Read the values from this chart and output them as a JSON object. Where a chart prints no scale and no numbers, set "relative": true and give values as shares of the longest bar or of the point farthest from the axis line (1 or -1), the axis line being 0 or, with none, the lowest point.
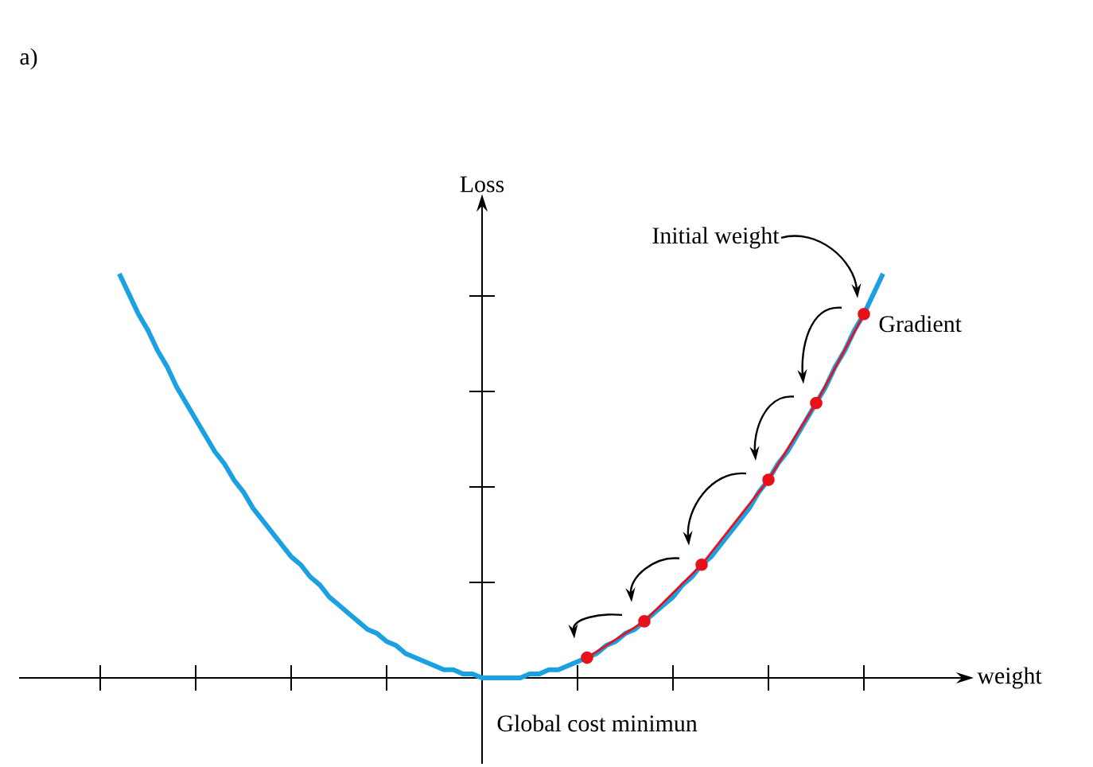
{
  "chart_data": {
    "type": "line",
    "relative": true,
    "xlabel": "weight",
    "ylabel": "Loss",
    "annotations": [
      "a)",
      "Initial weight",
      "Gradient",
      "Global cost minimun"
    ],
    "categories": [
      null,
      null,
      null,
      null,
      null,
      null,
      null,
      null,
      null,
      null,
      null,
      null,
      null,
      null,
      null,
      null,
      null,
      null,
      null,
      null,
      null,
      null,
      null,
      null,
      null,
      null,
      null,
      null,
      null,
      null,
      null,
      null,
      null,
      null,
      null,
      null,
      null,
      null,
      null,
      null,
      null,
      null,
      null,
      null,
      null,
      null,
      null,
      null,
      null,
      null,
      null,
      null,
      null,
      null,
      null,
      null,
      null,
      null,
      null,
      null,
      null,
      null,
      null,
      null,
      null,
      null,
      null,
      null,
      null,
      null,
      null,
      null,
      null,
      null,
      null,
      null,
      null,
      null,
      null,
      null,
      null
    ],
    "series": [
      {
        "color": "#1ba1e2",
        "values": [
          1,
          0.95,
          0.9,
          0.86,
          0.81,
          0.77,
          0.72,
          0.68,
          0.64,
          0.6,
          0.56,
          0.53,
          0.49,
          0.46,
          0.42,
          0.39,
          0.36,
          0.33,
          0.3,
          0.28,
          0.25,
          0.23,
          0.2,
          0.18,
          0.16,
          0.14,
          0.12,
          0.11,
          0.09,
          0.08,
          0.06,
          0.05,
          0.04,
          0.03,
          0.02,
          0.02,
          0.01,
          0.01,
          0,
          0,
          0,
          0,
          0,
          0.01,
          0.01,
          0.02,
          0.02,
          0.03,
          0.04,
          0.05,
          0.06,
          0.08,
          0.09,
          0.11,
          0.12,
          0.14,
          0.16,
          0.18,
          0.2,
          0.23,
          0.25,
          0.28,
          0.3,
          0.33,
          0.36,
          0.39,
          0.42,
          0.46,
          0.49,
          0.53,
          0.56,
          0.6,
          0.64,
          0.68,
          0.72,
          0.77,
          0.81,
          0.86,
          0.9,
          0.95,
          1
        ]
      },
      {
        "color": "#e8101a",
        "marker": "circle",
        "values": [
          null,
          null,
          null,
          null,
          null,
          null,
          null,
          null,
          null,
          null,
          null,
          null,
          null,
          null,
          null,
          null,
          null,
          null,
          null,
          null,
          null,
          null,
          null,
          null,
          null,
          null,
          null,
          null,
          null,
          null,
          null,
          null,
          null,
          null,
          null,
          null,
          null,
          null,
          null,
          null,
          null,
          null,
          null,
          null,
          null,
          null,
          null,
          null,
          null,
          0.05,
          null,
          null,
          null,
          null,
          null,
          0.14,
          null,
          null,
          null,
          null,
          null,
          0.28,
          null,
          null,
          null,
          null,
          null,
          null,
          0.49,
          null,
          null,
          null,
          null,
          0.68,
          null,
          null,
          null,
          null,
          0.9,
          null,
          null
        ]
      }
    ]
  }
}
